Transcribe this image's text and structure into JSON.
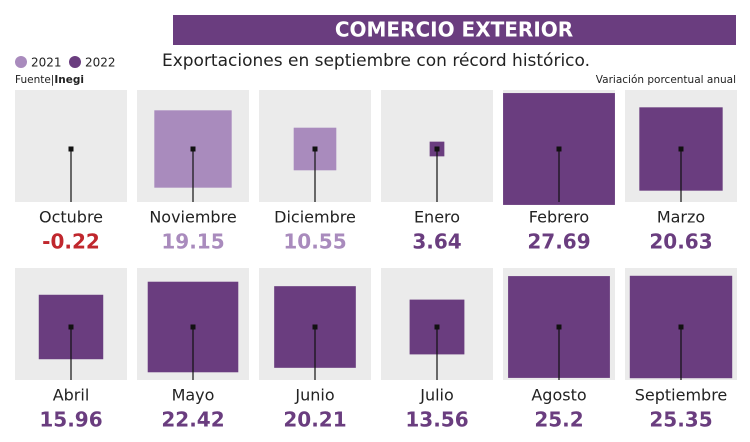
{
  "chart_data": {
    "type": "square",
    "title": "COMERCIO EXTERIOR",
    "subtitle": "Exportaciones en septiembre con récord histórico.",
    "source_label": "Fuente|",
    "source": "Inegi",
    "note": "Variación porcentual anual",
    "legend": [
      {
        "name": "2021",
        "color": "#a98bbd"
      },
      {
        "name": "2022",
        "color": "#6a3d7f"
      }
    ],
    "categories": [
      "Octubre",
      "Noviembre",
      "Diciembre",
      "Enero",
      "Febrero",
      "Marzo",
      "Abril",
      "Mayo",
      "Junio",
      "Julio",
      "Agosto",
      "Septiembre"
    ],
    "values": [
      -0.22,
      19.15,
      10.55,
      3.64,
      27.69,
      20.63,
      15.96,
      22.42,
      20.21,
      13.56,
      25.2,
      25.35
    ],
    "colors": [
      "#c0272d",
      "#a98bbd",
      "#a98bbd",
      "#6a3d7f",
      "#6a3d7f",
      "#6a3d7f",
      "#6a3d7f",
      "#6a3d7f",
      "#6a3d7f",
      "#6a3d7f",
      "#6a3d7f",
      "#6a3d7f"
    ]
  }
}
